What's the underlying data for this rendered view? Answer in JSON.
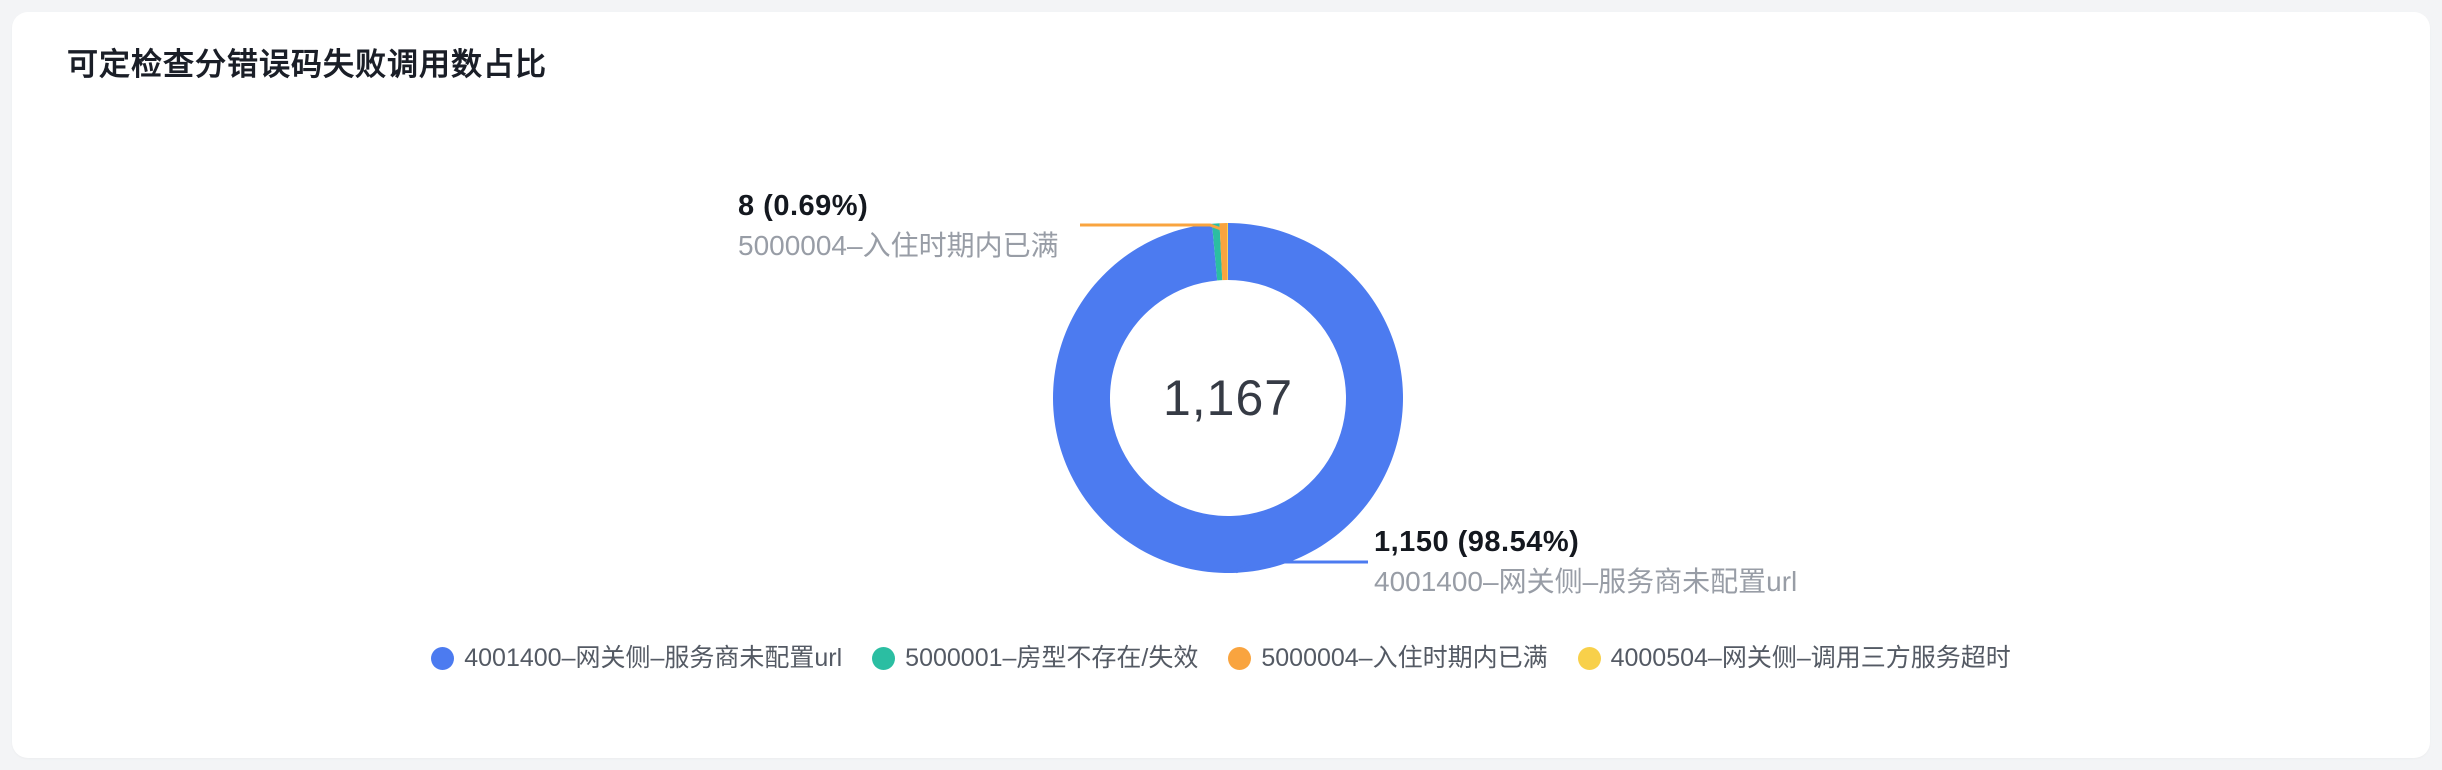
{
  "header": {
    "title": "可定检查分错误码失败调用数占比"
  },
  "chart_data": {
    "type": "pie",
    "subtype": "donut",
    "title": "可定检查分错误码失败调用数占比",
    "center_label": "1,167",
    "total": 1167,
    "legend_position": "bottom",
    "series": [
      {
        "name": "4001400–网关侧–服务商未配置url",
        "value": 1150,
        "percent": 98.54,
        "color": "#4C7BF0"
      },
      {
        "name": "5000001–房型不存在/失效",
        "value": 8,
        "percent": 0.69,
        "color": "#2BBEA2"
      },
      {
        "name": "5000004–入住时期内已满",
        "value": 8,
        "percent": 0.69,
        "color": "#F9A43F"
      },
      {
        "name": "4000504–网关侧–调用三方服务超时",
        "value": 1,
        "percent": 0.09,
        "color": "#F8D04A"
      }
    ],
    "annotations": [
      {
        "value_text": "8 (0.69%)",
        "name_text": "5000004–入住时期内已满",
        "position": "top-left"
      },
      {
        "value_text": "1,150 (98.54%)",
        "name_text": "4001400–网关侧–服务商未配置url",
        "position": "bottom-right"
      }
    ]
  },
  "callouts": {
    "top": {
      "value": "8 (0.69%)",
      "label": "5000004–入住时期内已满"
    },
    "bottom": {
      "value": "1,150 (98.54%)",
      "label": "4001400–网关侧–服务商未配置url"
    }
  },
  "colors": {
    "page_background": "#f3f4f6",
    "card_background": "#ffffff",
    "title_text": "#1a1e27",
    "value_text": "#14181f",
    "muted_text": "#989da6",
    "legend_text": "#545a64",
    "center_text": "#363b45"
  }
}
